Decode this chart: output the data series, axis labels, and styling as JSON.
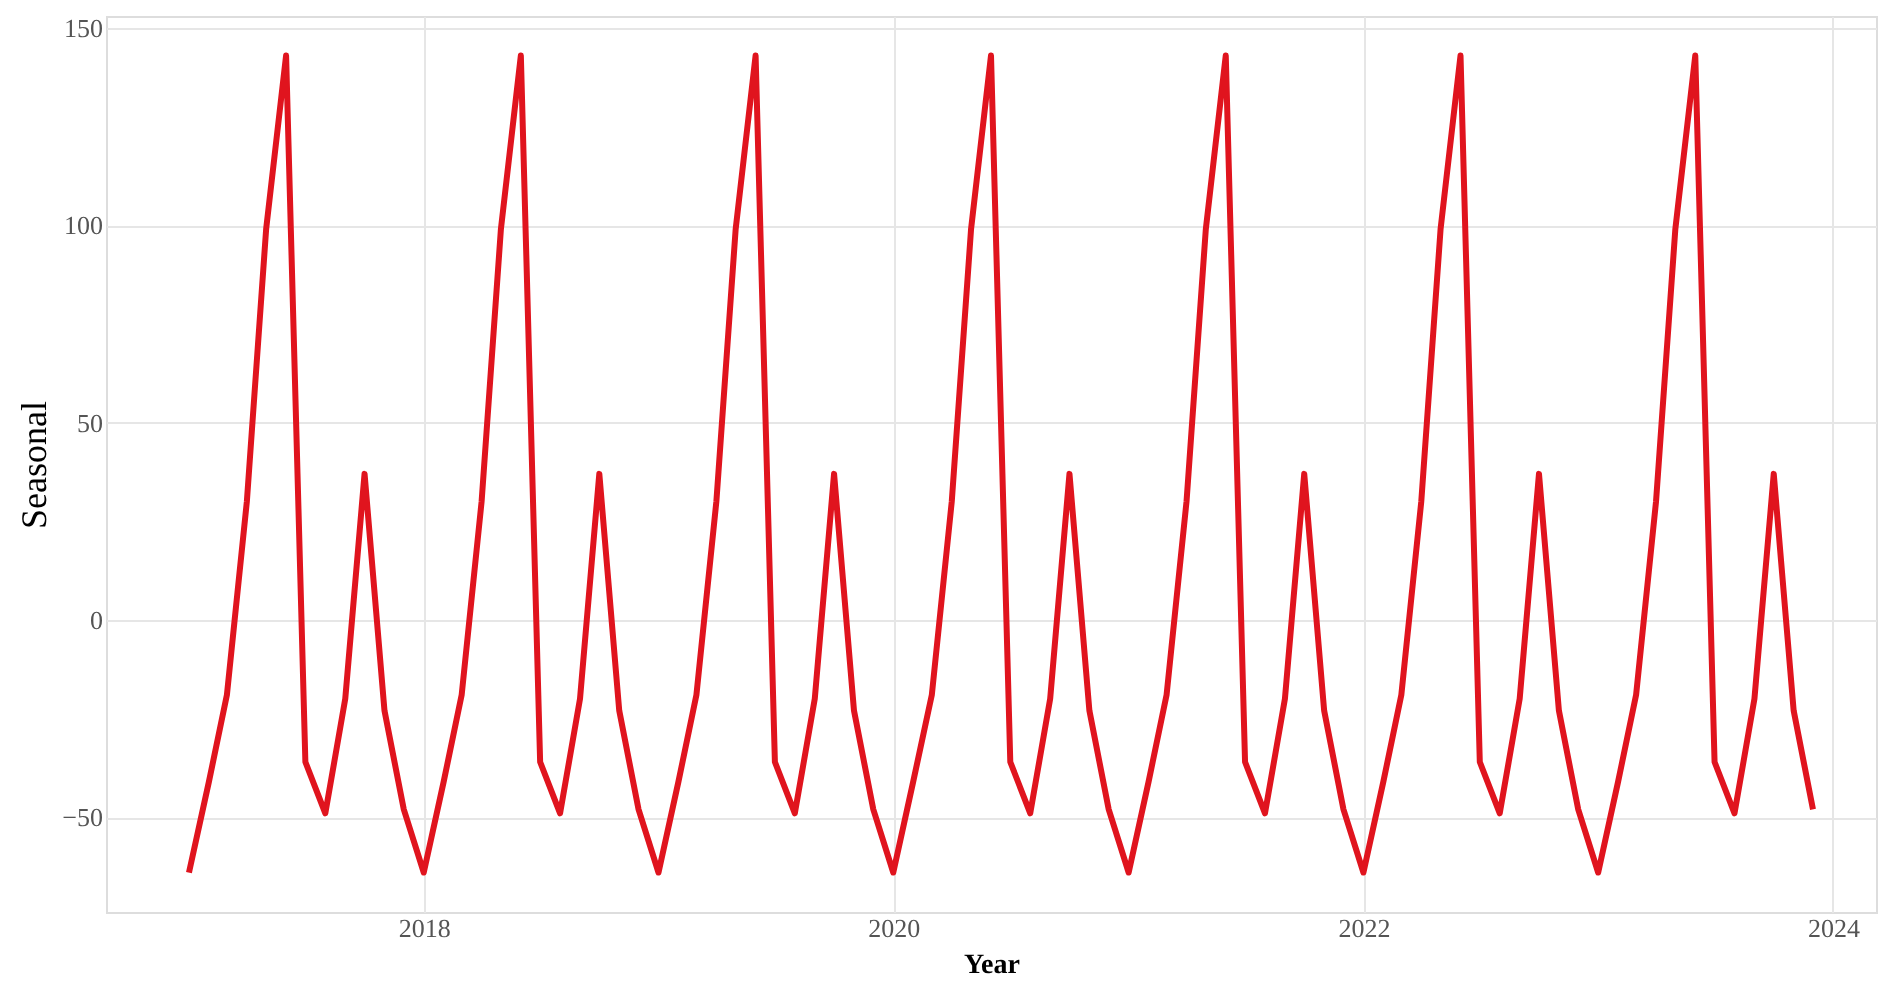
{
  "chart_data": {
    "type": "line",
    "xlabel": "Year",
    "ylabel": "Seasonal",
    "x": [
      "2017-01",
      "2017-02",
      "2017-03",
      "2017-04",
      "2017-05",
      "2017-06",
      "2017-07",
      "2017-08",
      "2017-09",
      "2017-10",
      "2017-11",
      "2017-12",
      "2018-01",
      "2018-02",
      "2018-03",
      "2018-04",
      "2018-05",
      "2018-06",
      "2018-07",
      "2018-08",
      "2018-09",
      "2018-10",
      "2018-11",
      "2018-12",
      "2019-01",
      "2019-02",
      "2019-03",
      "2019-04",
      "2019-05",
      "2019-06",
      "2019-07",
      "2019-08",
      "2019-09",
      "2019-10",
      "2019-11",
      "2019-12",
      "2020-01",
      "2020-02",
      "2020-03",
      "2020-04",
      "2020-05",
      "2020-06",
      "2020-07",
      "2020-08",
      "2020-09",
      "2020-10",
      "2020-11",
      "2020-12",
      "2021-01",
      "2021-02",
      "2021-03",
      "2021-04",
      "2021-05",
      "2021-06",
      "2021-07",
      "2021-08",
      "2021-09",
      "2021-10",
      "2021-11",
      "2021-12",
      "2022-01",
      "2022-02",
      "2022-03",
      "2022-04",
      "2022-05",
      "2022-06",
      "2022-07",
      "2022-08",
      "2022-09",
      "2022-10",
      "2022-11",
      "2022-12",
      "2023-01",
      "2023-02",
      "2023-03",
      "2023-04",
      "2023-05",
      "2023-06",
      "2023-07",
      "2023-08",
      "2023-09",
      "2023-10",
      "2023-11",
      "2023-12"
    ],
    "series": [
      {
        "color": "#e0141e",
        "values": [
          -64,
          -41,
          -19,
          30,
          99,
          143,
          -36,
          -49,
          -20,
          37,
          -23,
          -48,
          -64,
          -41,
          -19,
          30,
          99,
          143,
          -36,
          -49,
          -20,
          37,
          -23,
          -48,
          -64,
          -41,
          -19,
          30,
          99,
          143,
          -36,
          -49,
          -20,
          37,
          -23,
          -48,
          -64,
          -41,
          -19,
          30,
          99,
          143,
          -36,
          -49,
          -20,
          37,
          -23,
          -48,
          -64,
          -41,
          -19,
          30,
          99,
          143,
          -36,
          -49,
          -20,
          37,
          -23,
          -48,
          -64,
          -41,
          -19,
          30,
          99,
          143,
          -36,
          -49,
          -20,
          37,
          -23,
          -48,
          -64,
          -41,
          -19,
          30,
          99,
          143,
          -36,
          -49,
          -20,
          37,
          -23,
          -48
        ]
      }
    ],
    "xlim": [
      "2016-08-25",
      "2024-03-08"
    ],
    "xticks": [
      {
        "value": "2018",
        "label": "2018"
      },
      {
        "value": "2020",
        "label": "2020"
      },
      {
        "value": "2022",
        "label": "2022"
      },
      {
        "value": "2024",
        "label": "2024"
      }
    ],
    "ylim": [
      -74,
      153
    ],
    "yticks": [
      -50,
      0,
      50,
      100,
      150
    ],
    "grid": true,
    "marker": "none",
    "line_style": "solid"
  }
}
